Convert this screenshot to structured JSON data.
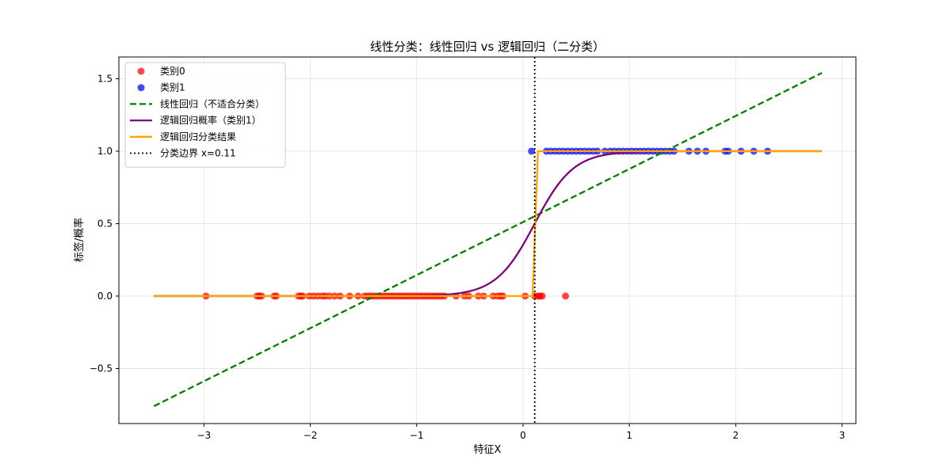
{
  "chart_data": {
    "type": "line",
    "title": "线性分类：线性回归 vs 逻辑回归（二分类）",
    "xlabel": "特征X",
    "ylabel": "标签/概率",
    "xlim": [
      -3.8,
      3.13
    ],
    "ylim": [
      -0.88,
      1.65
    ],
    "x_ticks": [
      -3,
      -2,
      -1,
      0,
      1,
      2,
      3
    ],
    "x_tick_labels": [
      "−3",
      "−2",
      "−1",
      "0",
      "1",
      "2",
      "3"
    ],
    "y_ticks": [
      -0.5,
      0.0,
      0.5,
      1.0,
      1.5
    ],
    "y_tick_labels": [
      "−0.5",
      "0.0",
      "0.5",
      "1.0",
      "1.5"
    ],
    "grid": true,
    "legend_position": "top-left",
    "colors": {
      "class0": "#ff0000",
      "class1": "#0000ff",
      "linear": "#008000",
      "logistic_prob": "#800080",
      "logistic_class": "#ffa500",
      "boundary": "#000000"
    },
    "legend": [
      {
        "label": "类别0",
        "kind": "marker",
        "color": "#ff0000"
      },
      {
        "label": "类别1",
        "kind": "marker",
        "color": "#0000ff"
      },
      {
        "label": "线性回归（不适合分类）",
        "kind": "dashed",
        "color": "#008000"
      },
      {
        "label": "逻辑回归概率（类别1）",
        "kind": "solid",
        "color": "#800080"
      },
      {
        "label": "逻辑回归分类结果",
        "kind": "solid",
        "color": "#ffa500"
      },
      {
        "label": "分类边界 x=0.11",
        "kind": "dotted",
        "color": "#000000"
      }
    ],
    "series": [
      {
        "name": "类别0",
        "type": "scatter",
        "y": 0,
        "x": [
          -2.98,
          -2.5,
          -2.48,
          -2.46,
          -2.34,
          -2.32,
          -2.11,
          -2.09,
          -2.07,
          -2.01,
          -1.97,
          -1.93,
          -1.89,
          -1.86,
          -1.82,
          -1.77,
          -1.72,
          -1.63,
          -1.55,
          -1.49,
          -1.46,
          -1.43,
          -1.4,
          -1.37,
          -1.34,
          -1.31,
          -1.28,
          -1.25,
          -1.22,
          -1.19,
          -1.16,
          -1.13,
          -1.1,
          -1.07,
          -1.04,
          -1.01,
          -0.98,
          -0.95,
          -0.92,
          -0.89,
          -0.86,
          -0.83,
          -0.8,
          -0.77,
          -0.74,
          -0.63,
          -0.55,
          -0.51,
          -0.42,
          -0.37,
          -0.28,
          -0.24,
          -0.21,
          -0.19,
          0.02,
          0.11,
          0.14,
          0.16,
          0.18,
          0.4
        ]
      },
      {
        "name": "类别1",
        "type": "scatter",
        "y": 1,
        "x": [
          0.08,
          0.22,
          0.26,
          0.3,
          0.34,
          0.38,
          0.42,
          0.46,
          0.5,
          0.54,
          0.58,
          0.62,
          0.66,
          0.7,
          0.77,
          0.82,
          0.86,
          0.9,
          0.94,
          0.98,
          1.02,
          1.06,
          1.1,
          1.14,
          1.18,
          1.22,
          1.26,
          1.3,
          1.34,
          1.38,
          1.42,
          1.56,
          1.64,
          1.72,
          1.9,
          1.93,
          2.05,
          2.17,
          2.3
        ]
      },
      {
        "name": "线性回归（不适合分类）",
        "type": "line",
        "x": [
          -3.47,
          2.81
        ],
        "y": [
          -0.76,
          1.54
        ]
      },
      {
        "name": "逻辑回归概率（类别1）",
        "type": "curve",
        "function": "sigmoid",
        "center": 0.11,
        "steepness": 5.5,
        "x_range": [
          -3.47,
          2.81
        ]
      },
      {
        "name": "逻辑回归分类结果",
        "type": "step",
        "x": [
          -3.47,
          0.09,
          0.14,
          2.81
        ],
        "y": [
          0,
          0,
          1,
          1
        ]
      },
      {
        "name": "分类边界 x=0.11",
        "type": "vline",
        "x": 0.11
      }
    ]
  }
}
